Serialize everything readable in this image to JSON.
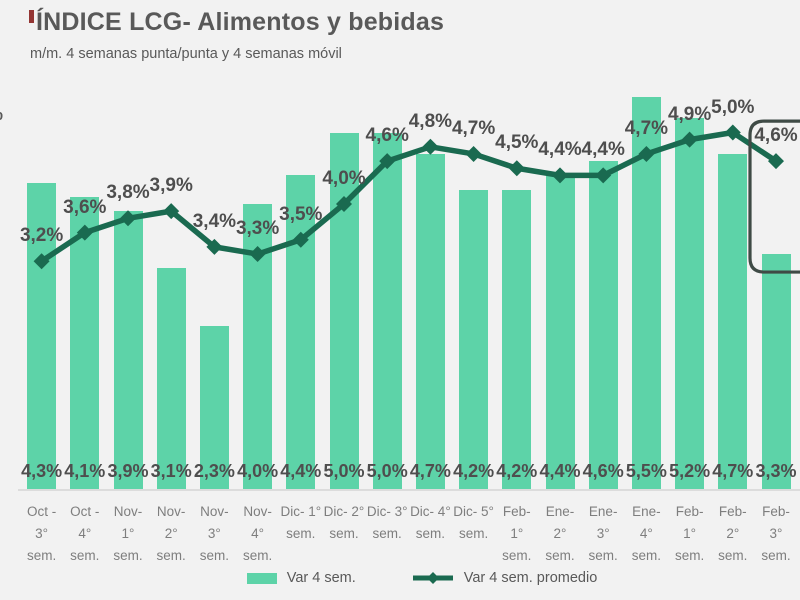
{
  "header": {
    "title": "ÍNDICE LCG- Alimentos y bebidas",
    "subtitle": "m/m. 4 semanas punta/punta y 4 semanas móvil"
  },
  "chart_data": {
    "type": "bar",
    "title": "ÍNDICE LCG- Alimentos y bebidas",
    "subtitle": "m/m. 4 semanas punta/punta y 4 semanas móvil",
    "categories": [
      "Oct -\n3°\nsem.",
      "Oct -\n4°\nsem.",
      "Nov-\n1°\nsem.",
      "Nov-\n2°\nsem.",
      "Nov-\n3°\nsem.",
      "Nov-\n4°\nsem.",
      "Dic- 1°\nsem.",
      "Dic- 2°\nsem.",
      "Dic- 3°\nsem.",
      "Dic- 4°\nsem.",
      "Dic- 5°\nsem.",
      "Feb-\n1°\nsem.",
      "Ene-\n2°\nsem.",
      "Ene-\n3°\nsem.",
      "Ene-\n4°\nsem.",
      "Feb-\n1°\nsem.",
      "Feb-\n2°\nsem.",
      "Feb-\n3°\nsem."
    ],
    "series": [
      {
        "name": "Var 4 sem.",
        "type": "bar",
        "color": "#5dd3a8",
        "values": [
          4.3,
          4.1,
          3.9,
          3.1,
          2.3,
          4.0,
          4.4,
          5.0,
          5.0,
          4.7,
          4.2,
          4.2,
          4.4,
          4.6,
          5.5,
          5.2,
          4.7,
          3.3
        ]
      },
      {
        "name": "Var 4 sem. promedio",
        "type": "line",
        "color": "#1a6a50",
        "values": [
          3.2,
          3.6,
          3.8,
          3.9,
          3.4,
          3.3,
          3.5,
          4.0,
          4.6,
          4.8,
          4.7,
          4.5,
          4.4,
          4.4,
          4.7,
          4.9,
          5.0,
          4.6
        ]
      }
    ],
    "value_format": "comma-decimal-percent",
    "ylim": [
      0,
      5.6
    ],
    "grid": false,
    "legend_position": "bottom",
    "y_axis_clipped_label": "%",
    "annotation": {
      "type": "right-edge-bracket",
      "from_index": 17,
      "color": "#3f4b46"
    },
    "colors": {
      "background": "#f2f2f2",
      "bar": "#5dd3a8",
      "line": "#1a6a50",
      "value_label_text": "#4e4e4e",
      "tick_text": "#7e7e7e",
      "axis_line": "#dcdcdc",
      "accent_mark": "#943634",
      "title_text": "#595959"
    }
  }
}
